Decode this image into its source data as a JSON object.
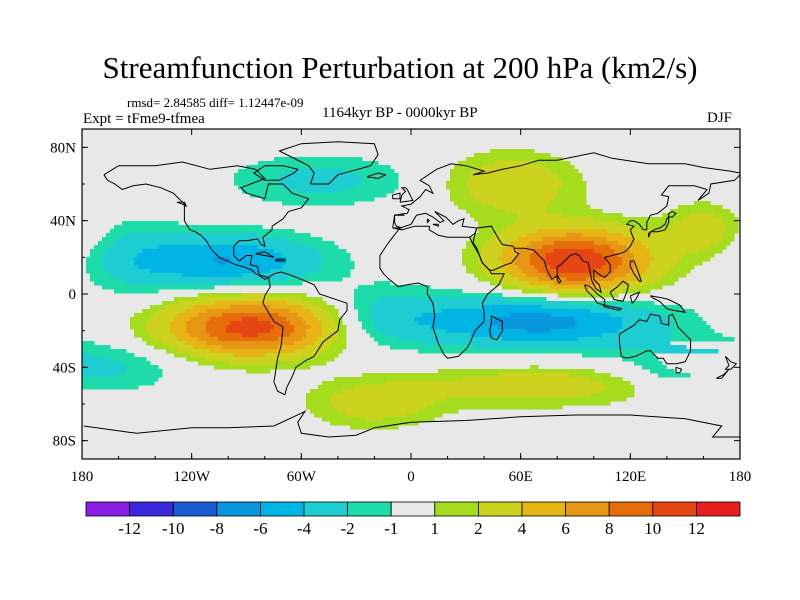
{
  "title": "Streamfunction Perturbation at 200 hPa (km2/s)",
  "stats": "rmsd= 2.84585 diff= 1.12447e-09",
  "experiment": "Expt = tFme9-tfmea",
  "period": "1164kyr BP - 0000kyr BP",
  "season": "DJF",
  "map": {
    "lon_range": [
      -180,
      180
    ],
    "lat_range": [
      -90,
      90
    ],
    "lon_ticks": [
      {
        "value": -180,
        "label": "180"
      },
      {
        "value": -120,
        "label": "120W"
      },
      {
        "value": -60,
        "label": "60W"
      },
      {
        "value": 0,
        "label": "0"
      },
      {
        "value": 60,
        "label": "60E"
      },
      {
        "value": 120,
        "label": "120E"
      },
      {
        "value": 180,
        "label": "180"
      }
    ],
    "lat_ticks": [
      {
        "value": 80,
        "label": "80N"
      },
      {
        "value": 40,
        "label": "40N"
      },
      {
        "value": 0,
        "label": "0"
      },
      {
        "value": -40,
        "label": "40S"
      },
      {
        "value": -80,
        "label": "80S"
      }
    ],
    "field_anomalies": [
      {
        "lon": 90,
        "lat": 18,
        "amp": 12,
        "sx": 28,
        "sy": 12
      },
      {
        "lon": -88,
        "lat": -18,
        "amp": 11,
        "sx": 32,
        "sy": 11
      },
      {
        "lon": -100,
        "lat": 18,
        "amp": -6,
        "sx": 35,
        "sy": 10
      },
      {
        "lon": 70,
        "lat": -15,
        "amp": -7,
        "sx": 45,
        "sy": 10
      },
      {
        "lon": 55,
        "lat": 60,
        "amp": 3.5,
        "sx": 25,
        "sy": 12
      },
      {
        "lon": -50,
        "lat": 62,
        "amp": -2.5,
        "sx": 35,
        "sy": 10
      },
      {
        "lon": 160,
        "lat": 35,
        "amp": 3.0,
        "sx": 15,
        "sy": 10
      },
      {
        "lon": -20,
        "lat": -60,
        "amp": 3.0,
        "sx": 25,
        "sy": 9
      },
      {
        "lon": -15,
        "lat": -12,
        "amp": -2.5,
        "sx": 25,
        "sy": 12
      },
      {
        "lon": -150,
        "lat": 20,
        "amp": -2.0,
        "sx": 20,
        "sy": 15
      },
      {
        "lon": 150,
        "lat": -40,
        "amp": -2.5,
        "sx": 25,
        "sy": 10
      },
      {
        "lon": 70,
        "lat": -50,
        "amp": 3.0,
        "sx": 50,
        "sy": 8
      },
      {
        "lon": -160,
        "lat": -40,
        "amp": -2.0,
        "sx": 25,
        "sy": 10
      }
    ]
  },
  "colorbar": {
    "colors": [
      "#8c1ee6",
      "#3c28dc",
      "#1e5ad2",
      "#0a96dc",
      "#00b4e6",
      "#1ecdd2",
      "#1edcaa",
      "#e8e8e8",
      "#a6dc1e",
      "#cdd21e",
      "#e6b414",
      "#e69614",
      "#e66e0a",
      "#e64614",
      "#e61e1e"
    ],
    "labels": [
      "-12",
      "-10",
      "-8",
      "-6",
      "-4",
      "-2",
      "-1",
      "1",
      "2",
      "4",
      "6",
      "8",
      "10",
      "12"
    ],
    "levels": [
      -12,
      -10,
      -8,
      -6,
      -4,
      -2,
      -1,
      1,
      2,
      4,
      6,
      8,
      10,
      12
    ]
  }
}
